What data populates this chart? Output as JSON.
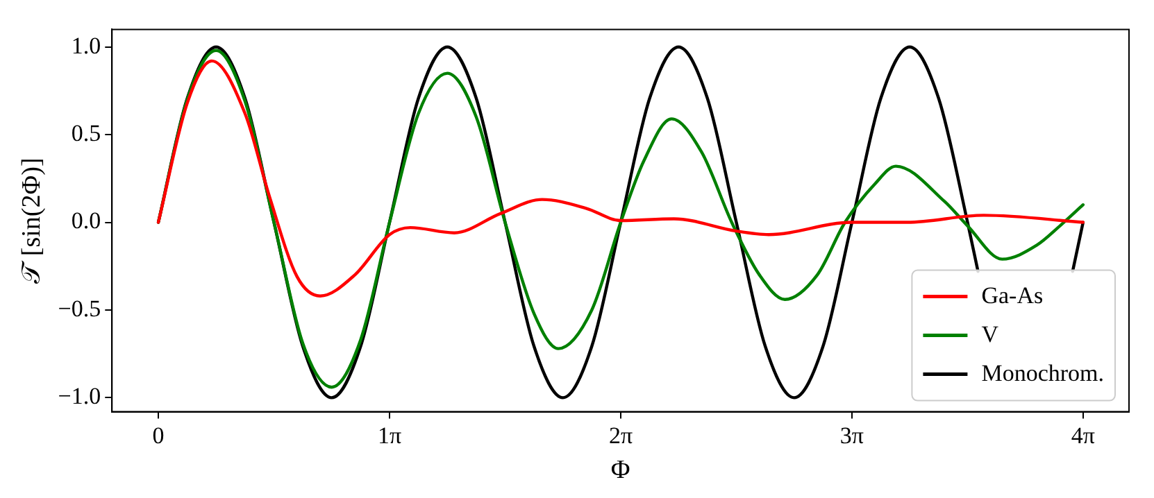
{
  "chart_data": {
    "type": "line",
    "xlabel": "Φ",
    "ylabel": "𝒯 [sin(2Φ)]",
    "xlim": [
      -0.63,
      13.19
    ],
    "xticks": [
      0,
      {
        "value": 3.1416,
        "label": "1π"
      },
      {
        "value": 6.2832,
        "label": "2π"
      },
      {
        "value": 9.4248,
        "label": "3π"
      },
      {
        "value": 12.5664,
        "label": "4π"
      }
    ],
    "ylim": [
      -1.08,
      1.1
    ],
    "yticks": [
      {
        "value": -1,
        "label": "−1.0"
      },
      {
        "value": -0.5,
        "label": "−0.5"
      },
      {
        "value": 0,
        "label": "0.0"
      },
      {
        "value": 0.5,
        "label": "0.5"
      },
      {
        "value": 1,
        "label": "1.0"
      }
    ],
    "grid": false,
    "legend": "bottom right",
    "marker": "none",
    "line_style": "solid",
    "series": [
      {
        "name": "Ga-As",
        "color": "#ff0000",
        "x": [
          0,
          0.393,
          0.726,
          1.178,
          1.508,
          1.885,
          2.199,
          2.67,
          3.142,
          3.424,
          4.021,
          4.65,
          5.215,
          5.812,
          6.283,
          7.006,
          7.854,
          8.294,
          9.425,
          10.179,
          11.215,
          12.566
        ],
        "values": [
          0,
          0.68,
          0.92,
          0.62,
          0.15,
          -0.31,
          -0.42,
          -0.3,
          -0.07,
          -0.03,
          -0.06,
          0.05,
          0.13,
          0.08,
          0.01,
          0.02,
          -0.05,
          -0.07,
          0.0,
          0.0,
          0.04,
          0.0
        ]
      },
      {
        "name": "V",
        "color": "#008000",
        "x": [
          0,
          0.393,
          0.785,
          1.178,
          1.571,
          1.963,
          2.356,
          2.749,
          3.142,
          3.534,
          3.927,
          4.32,
          4.712,
          5.105,
          5.435,
          5.89,
          6.283,
          6.597,
          6.974,
          7.383,
          7.791,
          8.168,
          8.514,
          8.954,
          9.331,
          9.739,
          10.022,
          10.681,
          10.996,
          11.467,
          11.938,
          12.252,
          12.566
        ],
        "values": [
          0,
          0.7,
          0.98,
          0.69,
          0,
          -0.69,
          -0.94,
          -0.67,
          0,
          0.62,
          0.85,
          0.6,
          0,
          -0.52,
          -0.72,
          -0.5,
          0,
          0.35,
          0.59,
          0.4,
          0,
          -0.3,
          -0.44,
          -0.3,
          0,
          0.22,
          0.32,
          0.12,
          -0.02,
          -0.21,
          -0.13,
          -0.02,
          0.1
        ]
      },
      {
        "name": "Monochrom.",
        "color": "#000000",
        "x": [
          0,
          0.393,
          0.785,
          1.178,
          1.571,
          1.963,
          2.356,
          2.749,
          3.142,
          3.534,
          3.927,
          4.32,
          4.712,
          5.105,
          5.498,
          5.89,
          6.283,
          6.676,
          7.069,
          7.461,
          7.854,
          8.247,
          8.639,
          9.032,
          9.425,
          9.817,
          10.21,
          10.603,
          10.996,
          11.138,
          11.781,
          12.424,
          12.566
        ],
        "values": [
          0,
          0.707,
          1,
          0.707,
          0,
          -0.707,
          -1,
          -0.707,
          0,
          0.707,
          1,
          0.707,
          0,
          -0.707,
          -1,
          -0.707,
          0,
          0.707,
          1,
          0.707,
          0,
          -0.707,
          -1,
          -0.707,
          0,
          0.707,
          1,
          0.707,
          0,
          -0.28,
          null,
          -0.28,
          0
        ]
      }
    ]
  }
}
